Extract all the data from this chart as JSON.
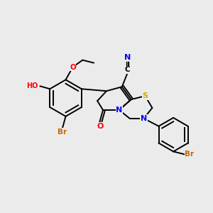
{
  "background_color": "#ebebeb",
  "atom_colors": {
    "C": "#000000",
    "N": "#0000ff",
    "O": "#ff0000",
    "S": "#ccaa00",
    "Br": "#cc6600",
    "H": "#888888"
  },
  "bond_color": "#000000",
  "figsize": [
    3.0,
    3.0
  ],
  "dpi": 100,
  "lw": 1.4
}
